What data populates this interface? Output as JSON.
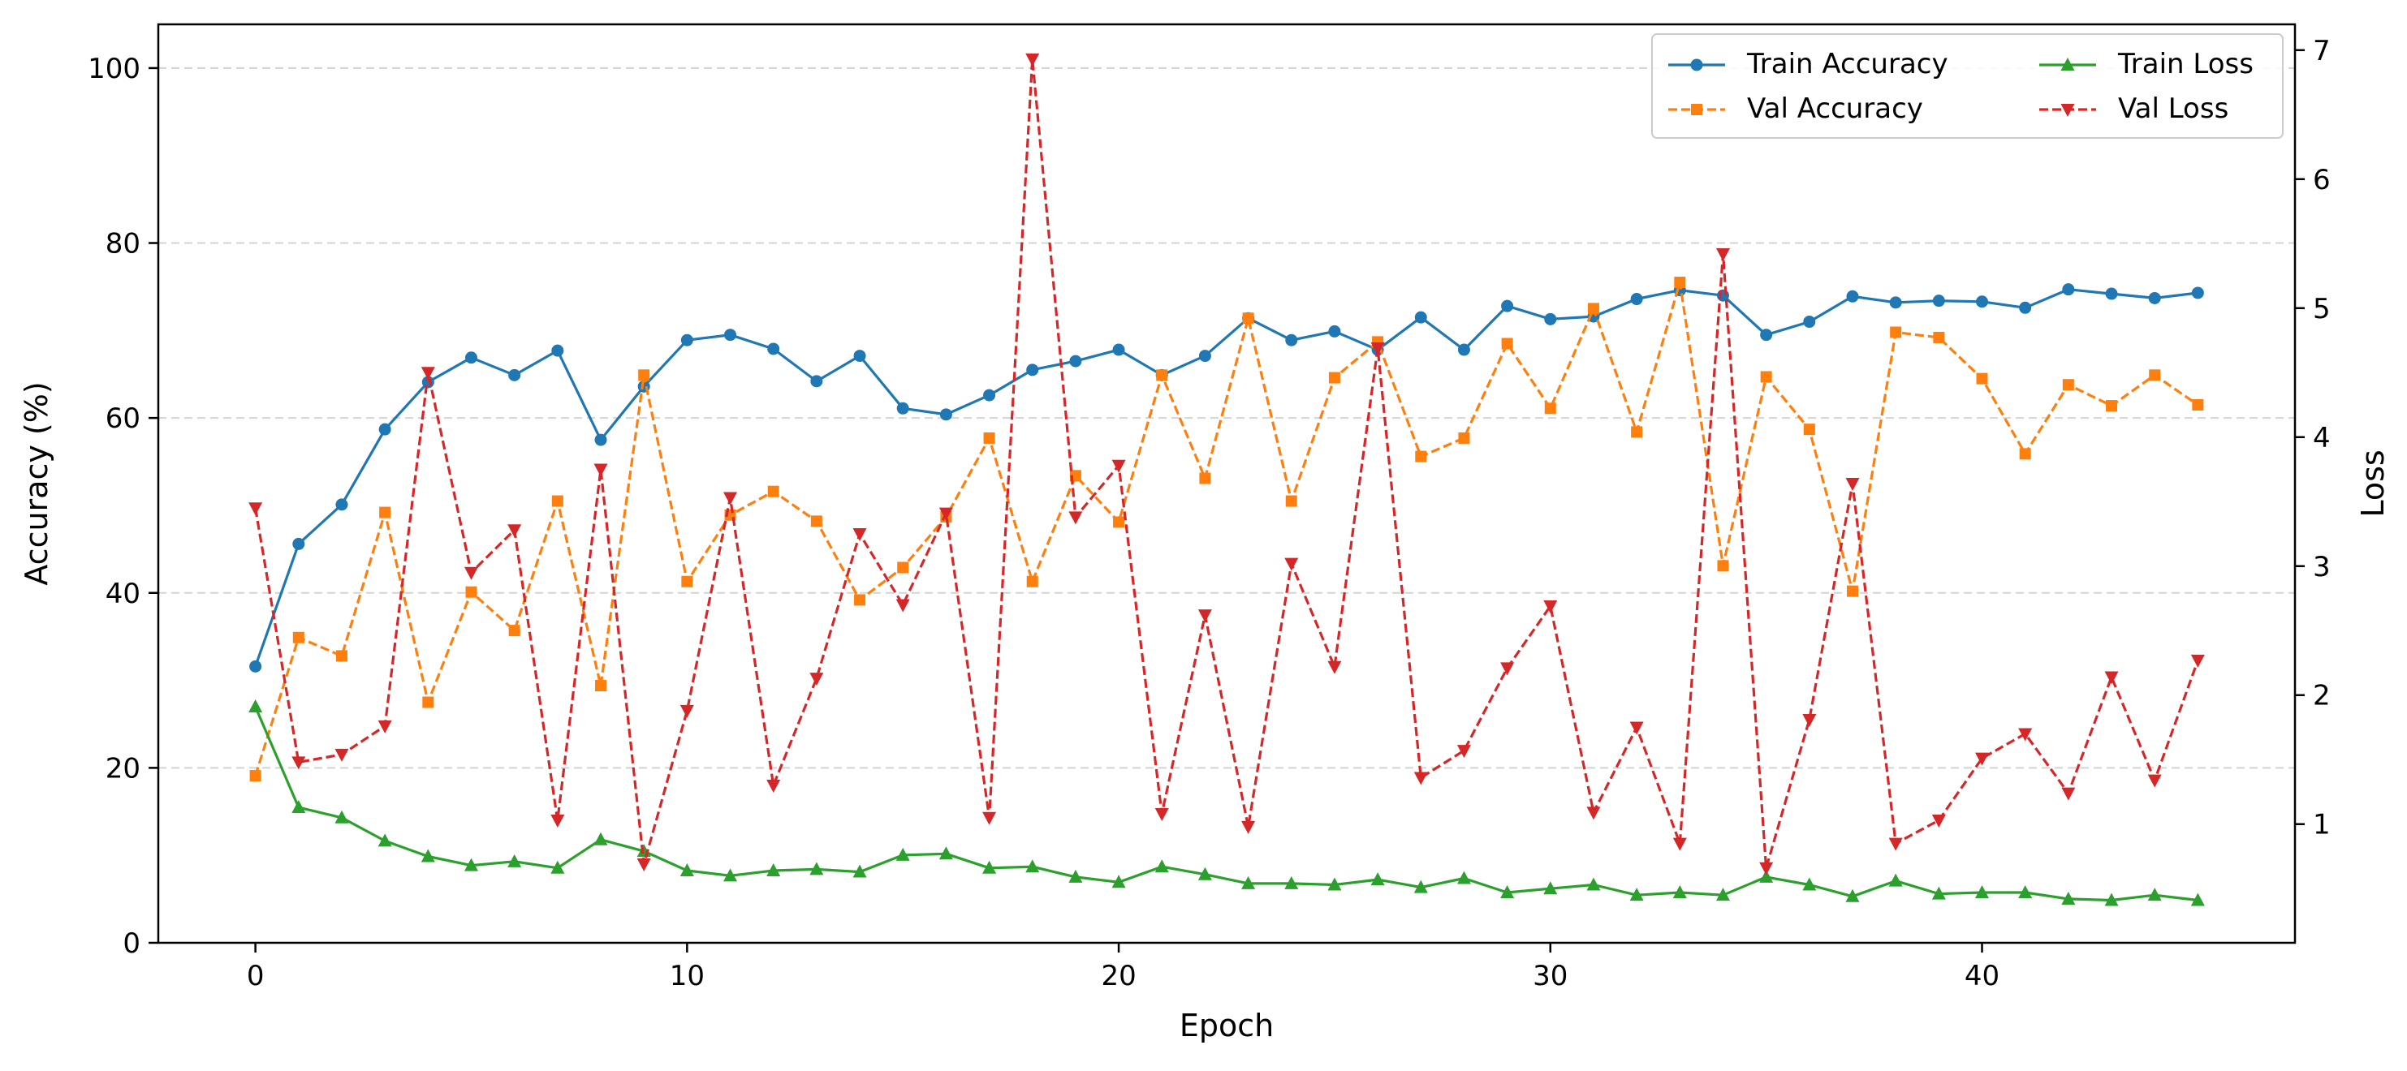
{
  "chart_data": {
    "type": "line",
    "title": "",
    "xlabel": "Epoch",
    "ylabel_left": "Accuracy (%)",
    "ylabel_right": "Loss",
    "xlim": [
      -2.25,
      47.25
    ],
    "ylim_left": [
      0,
      105
    ],
    "ylim_right": [
      0.08,
      7.2
    ],
    "x_ticks": [
      0,
      10,
      20,
      30,
      40
    ],
    "y_ticks_left": [
      0,
      20,
      40,
      60,
      80,
      100
    ],
    "y_ticks_right": [
      1,
      2,
      3,
      4,
      5,
      6,
      7
    ],
    "grid": "horizontal dashed (left axis)",
    "legend_position": "top-right",
    "x": [
      0,
      1,
      2,
      3,
      4,
      5,
      6,
      7,
      8,
      9,
      10,
      11,
      12,
      13,
      14,
      15,
      16,
      17,
      18,
      19,
      20,
      21,
      22,
      23,
      24,
      25,
      26,
      27,
      28,
      29,
      30,
      31,
      32,
      33,
      34,
      35,
      36,
      37,
      38,
      39,
      40,
      41,
      42,
      43,
      44,
      45
    ],
    "series": [
      {
        "name": "Train Accuracy",
        "axis": "left",
        "color": "#1f77b4",
        "linestyle": "solid",
        "marker": "circle",
        "values": [
          31.6,
          45.6,
          50.1,
          58.7,
          64.1,
          66.9,
          64.9,
          67.7,
          57.5,
          63.6,
          68.9,
          69.5,
          67.9,
          64.2,
          67.1,
          61.1,
          60.4,
          62.6,
          65.5,
          66.5,
          67.8,
          64.9,
          67.1,
          71.4,
          68.9,
          69.9,
          67.8,
          71.5,
          67.8,
          72.8,
          71.3,
          71.6,
          73.6,
          74.6,
          74.0,
          69.5,
          71.0,
          73.9,
          73.2,
          73.4,
          73.3,
          72.6,
          74.7,
          74.2,
          73.7,
          74.3
        ]
      },
      {
        "name": "Val Accuracy",
        "axis": "left",
        "color": "#ff7f0e",
        "linestyle": "dashed",
        "marker": "square",
        "values": [
          19.1,
          34.9,
          32.8,
          49.2,
          27.5,
          40.1,
          35.7,
          50.5,
          29.4,
          64.9,
          41.3,
          48.9,
          51.6,
          48.2,
          39.2,
          42.9,
          48.7,
          57.7,
          41.3,
          53.4,
          48.1,
          64.9,
          53.1,
          71.4,
          50.5,
          64.6,
          68.7,
          55.6,
          57.7,
          68.5,
          61.1,
          72.5,
          58.4,
          75.5,
          43.1,
          64.7,
          58.7,
          40.2,
          69.8,
          69.2,
          64.5,
          55.9,
          63.8,
          61.4,
          64.9,
          61.5
        ]
      },
      {
        "name": "Train Loss",
        "axis": "right",
        "color": "#2ca02c",
        "linestyle": "solid",
        "marker": "triangle-up",
        "values": [
          1.91,
          1.13,
          1.05,
          0.87,
          0.75,
          0.68,
          0.71,
          0.66,
          0.88,
          0.79,
          0.64,
          0.6,
          0.64,
          0.65,
          0.63,
          0.76,
          0.77,
          0.66,
          0.67,
          0.59,
          0.55,
          0.67,
          0.61,
          0.54,
          0.54,
          0.53,
          0.57,
          0.51,
          0.58,
          0.47,
          0.5,
          0.53,
          0.45,
          0.47,
          0.45,
          0.59,
          0.53,
          0.44,
          0.56,
          0.46,
          0.47,
          0.47,
          0.42,
          0.41,
          0.45,
          0.41
        ]
      },
      {
        "name": "Val Loss",
        "axis": "right",
        "color": "#d62728",
        "linestyle": "dashed",
        "marker": "triangle-down",
        "values": [
          3.45,
          1.48,
          1.54,
          1.76,
          4.5,
          2.95,
          3.28,
          1.03,
          3.75,
          0.69,
          1.88,
          3.53,
          1.3,
          2.13,
          3.25,
          2.7,
          3.41,
          1.05,
          6.93,
          3.38,
          3.78,
          1.08,
          2.62,
          0.98,
          3.02,
          2.22,
          4.69,
          1.36,
          1.57,
          2.21,
          2.69,
          1.09,
          1.75,
          0.85,
          5.42,
          0.66,
          1.81,
          3.64,
          0.85,
          1.03,
          1.51,
          1.7,
          1.24,
          2.14,
          1.34,
          2.27
        ]
      }
    ]
  }
}
